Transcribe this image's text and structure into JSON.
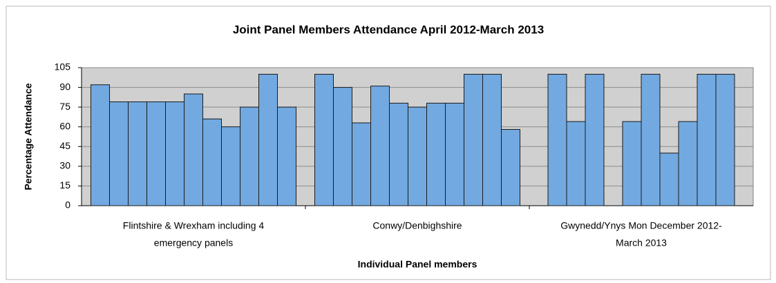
{
  "chart_data": {
    "type": "grouped-bar",
    "title": "Joint Panel Members Attendance April 2012-March 2013",
    "y_label": "Percentage Attendance",
    "x_label": "Individual Panel members",
    "groups": [
      {
        "label": [
          "Flintshire & Wrexham including 4",
          "emergency panels"
        ],
        "values": [
          92,
          79,
          79,
          79,
          79,
          85,
          66,
          60,
          75,
          100,
          75
        ]
      },
      {
        "label": [
          "Conwy/Denbighshire"
        ],
        "values": [
          100,
          90,
          63,
          91,
          78,
          75,
          78,
          78,
          100,
          100,
          58
        ]
      },
      {
        "label": [
          "Gwynedd/Ynys Mon December 2012-",
          "March 2013"
        ],
        "values": [
          100,
          64,
          100,
          null,
          64,
          100,
          40,
          64,
          100,
          100
        ]
      }
    ],
    "color": "#72a9e0",
    "ylim": [
      0,
      105
    ],
    "yticks": [
      0,
      15,
      30,
      45,
      60,
      75,
      90,
      105
    ],
    "grid": true
  }
}
